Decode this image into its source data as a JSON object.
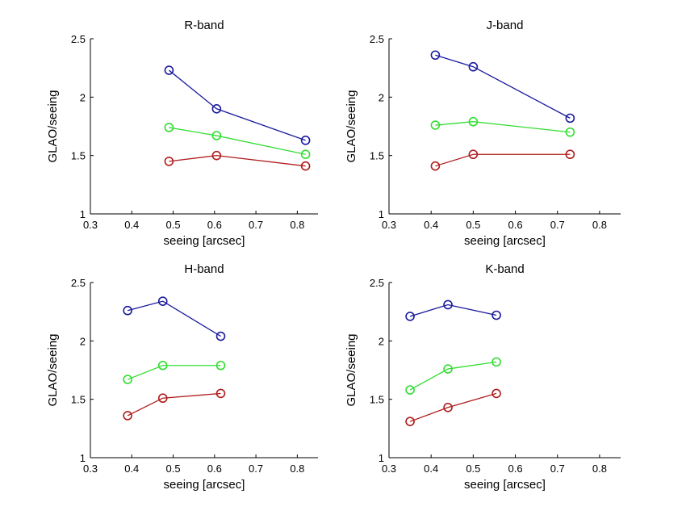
{
  "colors": {
    "blue": "#1a1a9e",
    "green": "#33dd33",
    "red": "#b01c1c",
    "axis": "#000000"
  },
  "chart_data": [
    {
      "type": "line",
      "title": "R-band",
      "xlabel": "seeing [arcsec]",
      "ylabel": "GLAO/seeing",
      "xlim": [
        0.3,
        0.85
      ],
      "ylim": [
        1,
        2.5
      ],
      "xticks": [
        "0.3",
        "0.4",
        "0.5",
        "0.6",
        "0.7",
        "0.8"
      ],
      "yticks": [
        "1",
        "1.5",
        "2",
        "2.5"
      ],
      "grid": false,
      "series": [
        {
          "color": "blue",
          "x": [
            0.49,
            0.605,
            0.82
          ],
          "y": [
            2.23,
            1.9,
            1.63
          ]
        },
        {
          "color": "green",
          "x": [
            0.49,
            0.605,
            0.82
          ],
          "y": [
            1.74,
            1.67,
            1.51
          ]
        },
        {
          "color": "red",
          "x": [
            0.49,
            0.605,
            0.82
          ],
          "y": [
            1.45,
            1.5,
            1.41
          ]
        }
      ]
    },
    {
      "type": "line",
      "title": "J-band",
      "xlabel": "seeing [arcsec]",
      "ylabel": "GLAO/seeing",
      "xlim": [
        0.3,
        0.85
      ],
      "ylim": [
        1,
        2.5
      ],
      "xticks": [
        "0.3",
        "0.4",
        "0.5",
        "0.6",
        "0.7",
        "0.8"
      ],
      "yticks": [
        "1",
        "1.5",
        "2",
        "2.5"
      ],
      "grid": false,
      "series": [
        {
          "color": "blue",
          "x": [
            0.41,
            0.5,
            0.73
          ],
          "y": [
            2.36,
            2.26,
            1.82
          ]
        },
        {
          "color": "green",
          "x": [
            0.41,
            0.5,
            0.73
          ],
          "y": [
            1.76,
            1.79,
            1.7
          ]
        },
        {
          "color": "red",
          "x": [
            0.41,
            0.5,
            0.73
          ],
          "y": [
            1.41,
            1.51,
            1.51
          ]
        }
      ]
    },
    {
      "type": "line",
      "title": "H-band",
      "xlabel": "seeing [arcsec]",
      "ylabel": "GLAO/seeing",
      "xlim": [
        0.3,
        0.85
      ],
      "ylim": [
        1,
        2.5
      ],
      "xticks": [
        "0.3",
        "0.4",
        "0.5",
        "0.6",
        "0.7",
        "0.8"
      ],
      "yticks": [
        "1",
        "1.5",
        "2",
        "2.5"
      ],
      "grid": false,
      "series": [
        {
          "color": "blue",
          "x": [
            0.39,
            0.475,
            0.615
          ],
          "y": [
            2.26,
            2.34,
            2.04
          ]
        },
        {
          "color": "green",
          "x": [
            0.39,
            0.475,
            0.615
          ],
          "y": [
            1.67,
            1.79,
            1.79
          ]
        },
        {
          "color": "red",
          "x": [
            0.39,
            0.475,
            0.615
          ],
          "y": [
            1.36,
            1.51,
            1.55
          ]
        }
      ]
    },
    {
      "type": "line",
      "title": "K-band",
      "xlabel": "seeing [arcsec]",
      "ylabel": "GLAO/seeing",
      "xlim": [
        0.3,
        0.85
      ],
      "ylim": [
        1,
        2.5
      ],
      "xticks": [
        "0.3",
        "0.4",
        "0.5",
        "0.6",
        "0.7",
        "0.8"
      ],
      "yticks": [
        "1",
        "1.5",
        "2",
        "2.5"
      ],
      "grid": false,
      "series": [
        {
          "color": "blue",
          "x": [
            0.35,
            0.44,
            0.555
          ],
          "y": [
            2.21,
            2.31,
            2.22
          ]
        },
        {
          "color": "green",
          "x": [
            0.35,
            0.44,
            0.555
          ],
          "y": [
            1.58,
            1.76,
            1.82
          ]
        },
        {
          "color": "red",
          "x": [
            0.35,
            0.44,
            0.555
          ],
          "y": [
            1.31,
            1.43,
            1.55
          ]
        }
      ]
    }
  ]
}
